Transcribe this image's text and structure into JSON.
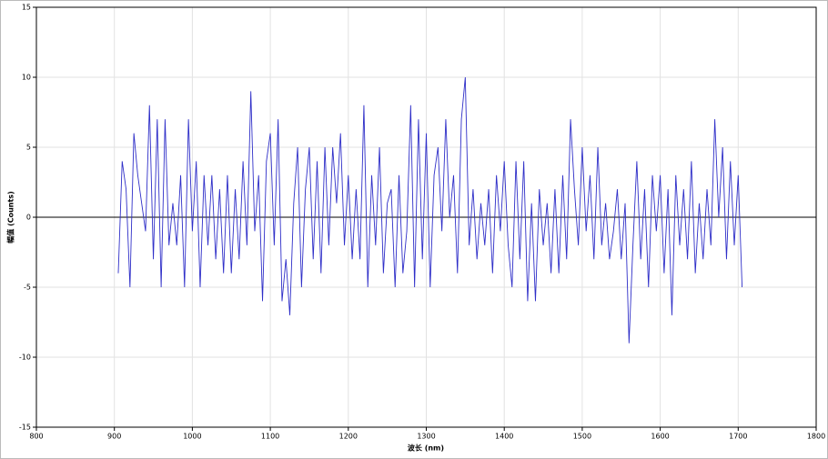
{
  "chart_data": {
    "type": "line",
    "xlabel": "波长 (nm)",
    "ylabel": "幅值 (Counts)",
    "xlim": [
      800,
      1800
    ],
    "xticks": [
      800,
      900,
      1000,
      1100,
      1200,
      1300,
      1400,
      1500,
      1600,
      1700,
      1800
    ],
    "ylim": [
      -15,
      15
    ],
    "yticks": [
      -15,
      -10,
      -5,
      0,
      5,
      10,
      15
    ],
    "grid": true,
    "color": "#2f2fc8",
    "x": [
      905,
      910,
      915,
      920,
      925,
      930,
      935,
      940,
      945,
      950,
      955,
      960,
      965,
      970,
      975,
      980,
      985,
      990,
      995,
      1000,
      1005,
      1010,
      1015,
      1020,
      1025,
      1030,
      1035,
      1040,
      1045,
      1050,
      1055,
      1060,
      1065,
      1070,
      1075,
      1080,
      1085,
      1090,
      1095,
      1100,
      1105,
      1110,
      1115,
      1120,
      1125,
      1130,
      1135,
      1140,
      1145,
      1150,
      1155,
      1160,
      1165,
      1170,
      1175,
      1180,
      1185,
      1190,
      1195,
      1200,
      1205,
      1210,
      1215,
      1220,
      1225,
      1230,
      1235,
      1240,
      1245,
      1250,
      1255,
      1260,
      1265,
      1270,
      1275,
      1280,
      1285,
      1290,
      1295,
      1300,
      1305,
      1310,
      1315,
      1320,
      1325,
      1330,
      1335,
      1340,
      1345,
      1350,
      1355,
      1360,
      1365,
      1370,
      1375,
      1380,
      1385,
      1390,
      1395,
      1400,
      1405,
      1410,
      1415,
      1420,
      1425,
      1430,
      1435,
      1440,
      1445,
      1450,
      1455,
      1460,
      1465,
      1470,
      1475,
      1480,
      1485,
      1490,
      1495,
      1500,
      1505,
      1510,
      1515,
      1520,
      1525,
      1530,
      1535,
      1540,
      1545,
      1550,
      1555,
      1560,
      1565,
      1570,
      1575,
      1580,
      1585,
      1590,
      1595,
      1600,
      1605,
      1610,
      1615,
      1620,
      1625,
      1630,
      1635,
      1640,
      1645,
      1650,
      1655,
      1660,
      1665,
      1670,
      1675,
      1680,
      1685,
      1690,
      1695,
      1700,
      1705
    ],
    "values": [
      -4,
      4,
      2,
      -5,
      6,
      3,
      1,
      -1,
      8,
      -3,
      7,
      -5,
      7,
      -2,
      1,
      -2,
      3,
      -5,
      7,
      -1,
      4,
      -5,
      3,
      -2,
      3,
      -3,
      2,
      -4,
      3,
      -4,
      2,
      -3,
      4,
      -2,
      9,
      -1,
      3,
      -6,
      4,
      6,
      -2,
      7,
      -6,
      -3,
      -7,
      1,
      5,
      -5,
      2,
      5,
      -3,
      4,
      -4,
      5,
      -2,
      5,
      1,
      6,
      -2,
      3,
      -3,
      2,
      -3,
      8,
      -5,
      3,
      -2,
      5,
      -4,
      1,
      2,
      -5,
      3,
      -4,
      -1,
      8,
      -5,
      7,
      -3,
      6,
      -5,
      3,
      5,
      -1,
      7,
      0,
      3,
      -4,
      7,
      10,
      -2,
      2,
      -3,
      1,
      -2,
      2,
      -4,
      3,
      -1,
      4,
      -2,
      -5,
      4,
      -3,
      4,
      -6,
      1,
      -6,
      2,
      -2,
      1,
      -4,
      2,
      -4,
      3,
      -3,
      7,
      2,
      -2,
      5,
      -1,
      3,
      -3,
      5,
      -2,
      1,
      -3,
      -1,
      2,
      -3,
      1,
      -9,
      -2,
      4,
      -3,
      2,
      -5,
      3,
      -1,
      3,
      -4,
      2,
      -7,
      3,
      -2,
      2,
      -3,
      4,
      -4,
      1,
      -3,
      2,
      -2,
      7,
      0,
      5,
      -3,
      4,
      -2,
      3,
      -5
    ]
  }
}
